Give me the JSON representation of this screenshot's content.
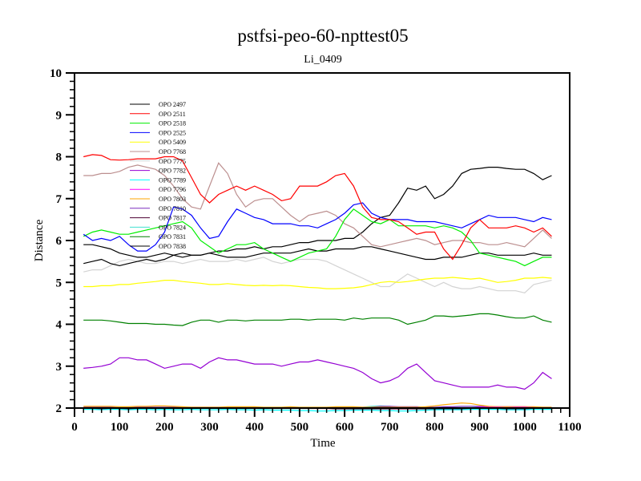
{
  "chart_data": {
    "type": "line",
    "title": "pstfsi-peo-60-npttest05",
    "subtitle": "Li_0409",
    "xlabel": "Time",
    "ylabel": "Distance",
    "xlim": [
      0,
      1100
    ],
    "ylim": [
      2,
      10
    ],
    "xticks": [
      0,
      100,
      200,
      300,
      400,
      500,
      600,
      700,
      800,
      900,
      1000,
      1100
    ],
    "yticks": [
      2,
      3,
      4,
      5,
      6,
      7,
      8,
      9,
      10
    ],
    "grid": false,
    "legend_placement": "top-left",
    "x": [
      20,
      40,
      60,
      80,
      100,
      120,
      140,
      160,
      180,
      200,
      220,
      240,
      260,
      280,
      300,
      320,
      340,
      360,
      380,
      400,
      420,
      440,
      460,
      480,
      500,
      520,
      540,
      560,
      580,
      600,
      620,
      640,
      660,
      680,
      700,
      720,
      740,
      760,
      780,
      800,
      820,
      840,
      860,
      880,
      900,
      920,
      940,
      960,
      980,
      1000,
      1020,
      1040,
      1060
    ],
    "series": [
      {
        "name": "OPO 2497",
        "color": "#000000",
        "values": [
          5.45,
          5.5,
          5.55,
          5.45,
          5.4,
          5.45,
          5.5,
          5.55,
          5.5,
          5.55,
          5.65,
          5.7,
          5.65,
          5.65,
          5.7,
          5.75,
          5.75,
          5.8,
          5.8,
          5.85,
          5.8,
          5.85,
          5.85,
          5.9,
          5.95,
          5.95,
          6.0,
          6.0,
          6.0,
          6.05,
          6.05,
          6.2,
          6.4,
          6.55,
          6.6,
          6.9,
          7.25,
          7.2,
          7.3,
          7.0,
          7.1,
          7.3,
          7.6,
          7.7,
          7.72,
          7.75,
          7.75,
          7.72,
          7.7,
          7.7,
          7.6,
          7.45,
          7.55
        ]
      },
      {
        "name": "OPO 2511",
        "color": "#ff0000",
        "values": [
          8.0,
          8.05,
          8.03,
          7.93,
          7.92,
          7.93,
          7.95,
          7.95,
          7.95,
          8.0,
          8.0,
          7.9,
          7.5,
          7.1,
          6.9,
          7.1,
          7.2,
          7.3,
          7.2,
          7.3,
          7.2,
          7.1,
          6.95,
          7.0,
          7.3,
          7.3,
          7.3,
          7.4,
          7.55,
          7.6,
          7.3,
          6.8,
          6.55,
          6.5,
          6.5,
          6.45,
          6.3,
          6.15,
          6.2,
          6.2,
          5.8,
          5.55,
          5.9,
          6.3,
          6.5,
          6.3,
          6.3,
          6.3,
          6.35,
          6.3,
          6.2,
          6.3,
          6.1
        ]
      },
      {
        "name": "OPO 2518",
        "color": "#00ee00",
        "values": [
          6.1,
          6.2,
          6.25,
          6.2,
          6.15,
          6.15,
          6.2,
          6.25,
          6.3,
          6.35,
          6.4,
          6.45,
          6.3,
          6.0,
          5.85,
          5.7,
          5.8,
          5.9,
          5.9,
          5.95,
          5.8,
          5.7,
          5.6,
          5.5,
          5.6,
          5.7,
          5.75,
          5.8,
          6.1,
          6.5,
          6.75,
          6.6,
          6.45,
          6.4,
          6.5,
          6.35,
          6.35,
          6.35,
          6.35,
          6.3,
          6.35,
          6.3,
          6.2,
          6.0,
          5.7,
          5.65,
          5.6,
          5.55,
          5.5,
          5.4,
          5.5,
          5.6,
          5.6
        ]
      },
      {
        "name": "OPO 2525",
        "color": "#0000ff",
        "values": [
          6.15,
          6.0,
          6.05,
          6.0,
          6.1,
          5.9,
          5.75,
          5.75,
          5.9,
          6.2,
          6.8,
          6.75,
          6.6,
          6.3,
          6.05,
          6.1,
          6.45,
          6.75,
          6.65,
          6.55,
          6.5,
          6.4,
          6.4,
          6.4,
          6.35,
          6.35,
          6.3,
          6.4,
          6.5,
          6.65,
          6.85,
          6.9,
          6.65,
          6.55,
          6.5,
          6.5,
          6.5,
          6.45,
          6.45,
          6.45,
          6.4,
          6.35,
          6.3,
          6.4,
          6.5,
          6.6,
          6.55,
          6.55,
          6.55,
          6.5,
          6.45,
          6.55,
          6.5
        ]
      },
      {
        "name": "OPO 5409",
        "color": "#ffff00",
        "values": [
          4.9,
          4.9,
          4.92,
          4.92,
          4.95,
          4.95,
          4.98,
          5.0,
          5.02,
          5.05,
          5.05,
          5.02,
          5.0,
          4.98,
          4.95,
          4.95,
          4.97,
          4.95,
          4.93,
          4.92,
          4.93,
          4.92,
          4.93,
          4.92,
          4.9,
          4.88,
          4.87,
          4.85,
          4.85,
          4.86,
          4.87,
          4.9,
          4.95,
          5.0,
          5.02,
          5.0,
          5.02,
          5.05,
          5.08,
          5.1,
          5.1,
          5.12,
          5.1,
          5.08,
          5.1,
          5.05,
          5.0,
          5.02,
          5.05,
          5.1,
          5.1,
          5.12,
          5.1
        ]
      },
      {
        "name": "OPO 7768",
        "color": "#bc8f8f",
        "values": [
          7.55,
          7.55,
          7.6,
          7.6,
          7.65,
          7.75,
          7.8,
          7.75,
          7.7,
          7.55,
          7.3,
          7.0,
          6.8,
          6.75,
          7.3,
          7.85,
          7.6,
          7.1,
          6.8,
          6.95,
          7.0,
          7.0,
          6.8,
          6.6,
          6.45,
          6.6,
          6.65,
          6.7,
          6.6,
          6.4,
          6.3,
          6.1,
          5.9,
          5.85,
          5.9,
          5.95,
          6.0,
          6.05,
          6.0,
          5.9,
          5.95,
          6.0,
          6.0,
          5.95,
          5.95,
          5.9,
          5.9,
          5.95,
          5.9,
          5.85,
          6.05,
          6.25,
          6.05
        ]
      },
      {
        "name": "OPO 7775",
        "color": "#d3d3d3",
        "values": [
          5.25,
          5.3,
          5.3,
          5.4,
          5.5,
          5.55,
          5.5,
          5.45,
          5.45,
          5.5,
          5.5,
          5.45,
          5.5,
          5.55,
          5.5,
          5.5,
          5.5,
          5.55,
          5.5,
          5.55,
          5.6,
          5.5,
          5.45,
          5.5,
          5.55,
          5.55,
          5.55,
          5.5,
          5.4,
          5.3,
          5.2,
          5.1,
          5.0,
          4.9,
          4.9,
          5.05,
          5.2,
          5.1,
          5.0,
          4.9,
          5.0,
          4.9,
          4.85,
          4.85,
          4.9,
          4.85,
          4.8,
          4.8,
          4.8,
          4.75,
          4.95,
          5.0,
          5.05
        ]
      },
      {
        "name": "OPO 7782",
        "color": "#9400d3",
        "values": [
          2.95,
          2.97,
          3.0,
          3.05,
          3.2,
          3.2,
          3.15,
          3.15,
          3.05,
          2.95,
          3.0,
          3.05,
          3.05,
          2.95,
          3.1,
          3.2,
          3.15,
          3.15,
          3.1,
          3.05,
          3.05,
          3.05,
          3.0,
          3.05,
          3.1,
          3.1,
          3.15,
          3.1,
          3.05,
          3.0,
          2.95,
          2.85,
          2.7,
          2.6,
          2.65,
          2.75,
          2.95,
          3.05,
          2.85,
          2.65,
          2.6,
          2.55,
          2.5,
          2.5,
          2.5,
          2.5,
          2.55,
          2.5,
          2.5,
          2.45,
          2.6,
          2.85,
          2.7
        ]
      },
      {
        "name": "OPO 7789",
        "color": "#00ffff",
        "values": [
          1.97,
          1.97,
          1.96,
          1.97,
          1.97,
          1.96,
          1.97,
          1.97,
          1.96,
          1.97,
          1.96,
          1.96,
          1.97,
          1.96,
          1.96,
          1.96,
          1.97,
          1.96,
          1.96,
          1.95,
          1.96,
          1.95,
          1.95,
          1.95,
          1.94,
          1.94,
          1.93,
          1.93,
          1.94,
          1.94,
          1.95,
          1.95,
          1.95,
          1.94,
          1.94,
          1.93,
          1.93,
          1.94,
          1.95,
          1.96,
          1.96,
          1.96,
          1.96,
          1.97,
          1.97,
          1.97,
          1.97,
          1.96,
          1.96,
          1.96,
          1.97,
          1.97,
          1.97
        ]
      },
      {
        "name": "OPO 7796",
        "color": "#ff00ff",
        "values": [
          2.0,
          2.0,
          1.99,
          2.0,
          2.0,
          2.0,
          2.01,
          2.0,
          2.0,
          1.99,
          2.0,
          2.0,
          2.0,
          2.0,
          1.99,
          2.0,
          2.0,
          2.0,
          1.99,
          2.0,
          2.0,
          2.0,
          2.0,
          2.0,
          2.0,
          2.0,
          2.0,
          2.0,
          2.0,
          1.99,
          2.0,
          2.0,
          2.01,
          2.0,
          2.0,
          2.0,
          2.0,
          2.01,
          2.0,
          2.0,
          2.0,
          2.01,
          2.0,
          2.0,
          2.02,
          2.02,
          2.02,
          2.01,
          2.02,
          2.02,
          2.01,
          2.0,
          2.0
        ]
      },
      {
        "name": "OPO 7803",
        "color": "#ffa500",
        "values": [
          2.04,
          2.04,
          2.04,
          2.04,
          2.03,
          2.03,
          2.04,
          2.04,
          2.05,
          2.05,
          2.04,
          2.03,
          2.02,
          2.02,
          2.02,
          2.02,
          2.03,
          2.03,
          2.03,
          2.03,
          2.02,
          2.02,
          2.02,
          2.03,
          2.02,
          2.02,
          2.02,
          2.02,
          2.03,
          2.03,
          2.03,
          2.02,
          2.02,
          2.02,
          2.02,
          2.02,
          2.02,
          2.02,
          2.03,
          2.05,
          2.08,
          2.1,
          2.12,
          2.11,
          2.07,
          2.04,
          2.03,
          2.03,
          2.03,
          2.03,
          2.03,
          2.02,
          2.02
        ]
      },
      {
        "name": "OPO 7810",
        "color": "#7b2fbe",
        "values": [
          2.02,
          2.02,
          2.02,
          2.02,
          2.01,
          2.01,
          2.02,
          2.02,
          2.02,
          2.02,
          2.02,
          2.02,
          2.02,
          2.02,
          2.02,
          2.02,
          2.02,
          2.02,
          2.01,
          2.01,
          2.01,
          2.01,
          2.01,
          2.01,
          2.01,
          2.01,
          2.01,
          2.01,
          2.01,
          2.01,
          2.02,
          2.02,
          2.02,
          2.04,
          2.04,
          2.03,
          2.03,
          2.03,
          2.02,
          2.02,
          2.03,
          2.03,
          2.04,
          2.04,
          2.04,
          2.03,
          2.03,
          2.03,
          2.03,
          2.03,
          2.02,
          2.02,
          2.02
        ]
      },
      {
        "name": "OPO 7817",
        "color": "#4b0032",
        "values": [
          1.98,
          1.98,
          1.98,
          1.98,
          1.98,
          1.98,
          1.98,
          1.99,
          1.99,
          1.99,
          1.99,
          1.99,
          2.0,
          2.0,
          2.0,
          1.99,
          1.99,
          1.99,
          1.99,
          1.99,
          1.99,
          1.99,
          1.99,
          1.99,
          1.99,
          1.99,
          1.99,
          1.99,
          1.98,
          1.98,
          1.98,
          1.98,
          1.98,
          1.98,
          1.98,
          1.98,
          1.98,
          1.98,
          1.98,
          1.98,
          1.98,
          1.98,
          1.97,
          1.97,
          1.98,
          1.98,
          1.98,
          1.98,
          1.98,
          1.98,
          1.98,
          1.97,
          1.98
        ]
      },
      {
        "name": "OPO 7824",
        "color": "#40e0d0",
        "values": [
          1.99,
          2.0,
          2.0,
          2.0,
          2.0,
          2.0,
          2.0,
          2.0,
          2.0,
          2.0,
          2.0,
          2.0,
          2.0,
          2.0,
          2.0,
          2.0,
          2.0,
          2.0,
          2.0,
          2.0,
          2.0,
          2.0,
          2.0,
          2.01,
          2.01,
          2.01,
          2.01,
          2.01,
          2.01,
          2.01,
          2.01,
          2.02,
          2.04,
          2.05,
          2.04,
          2.02,
          2.01,
          2.01,
          2.01,
          2.01,
          2.01,
          2.01,
          2.01,
          2.01,
          2.02,
          2.02,
          2.02,
          2.02,
          2.02,
          2.02,
          2.01,
          2.01,
          2.01
        ]
      },
      {
        "name": "OPO 7831",
        "color": "#008000",
        "values": [
          4.1,
          4.1,
          4.1,
          4.08,
          4.05,
          4.02,
          4.02,
          4.02,
          4.0,
          4.0,
          3.98,
          3.97,
          4.05,
          4.1,
          4.1,
          4.05,
          4.1,
          4.1,
          4.08,
          4.1,
          4.1,
          4.1,
          4.1,
          4.12,
          4.12,
          4.1,
          4.12,
          4.12,
          4.12,
          4.1,
          4.15,
          4.12,
          4.15,
          4.15,
          4.15,
          4.1,
          4.0,
          4.05,
          4.1,
          4.2,
          4.2,
          4.18,
          4.2,
          4.22,
          4.25,
          4.25,
          4.22,
          4.18,
          4.15,
          4.15,
          4.2,
          4.1,
          4.05
        ]
      },
      {
        "name": "OPO 7838",
        "color": "#000000",
        "values": [
          5.9,
          5.9,
          5.85,
          5.8,
          5.7,
          5.65,
          5.6,
          5.6,
          5.65,
          5.7,
          5.65,
          5.6,
          5.65,
          5.65,
          5.7,
          5.65,
          5.6,
          5.6,
          5.6,
          5.65,
          5.7,
          5.7,
          5.7,
          5.7,
          5.75,
          5.8,
          5.75,
          5.75,
          5.8,
          5.8,
          5.8,
          5.85,
          5.85,
          5.8,
          5.75,
          5.7,
          5.65,
          5.6,
          5.55,
          5.55,
          5.6,
          5.6,
          5.6,
          5.65,
          5.7,
          5.7,
          5.65,
          5.65,
          5.65,
          5.65,
          5.7,
          5.65,
          5.65
        ]
      }
    ]
  }
}
